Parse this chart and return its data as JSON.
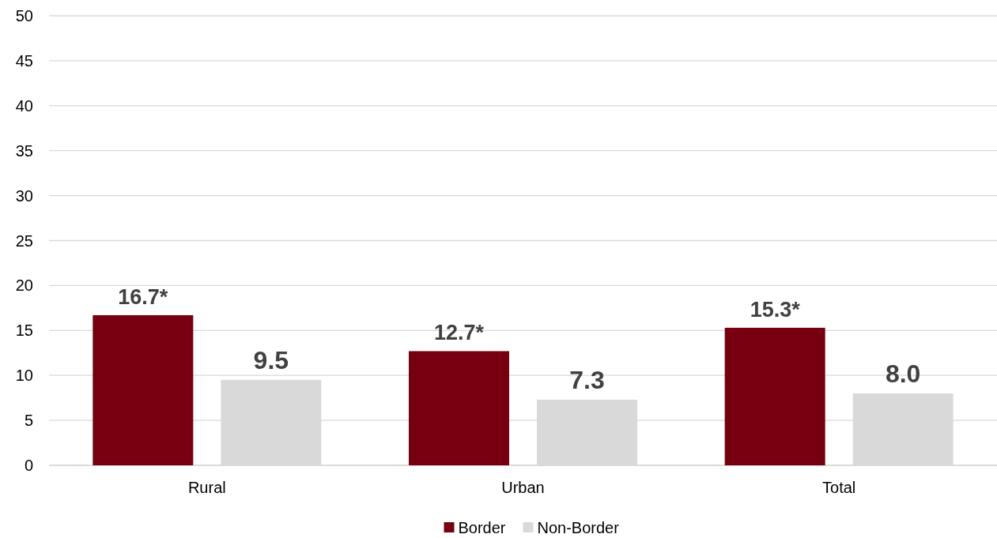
{
  "chart_data": {
    "type": "bar",
    "categories": [
      "Rural",
      "Urban",
      "Total"
    ],
    "series": [
      {
        "name": "Border",
        "color": "#76000f",
        "values": [
          16.7,
          12.7,
          15.3
        ],
        "value_labels": [
          "16.7*",
          "12.7*",
          "15.3*"
        ]
      },
      {
        "name": "Non-Border",
        "color": "#d9d9d9",
        "values": [
          9.5,
          7.3,
          8.0
        ],
        "value_labels": [
          "9.5",
          "7.3",
          "8.0"
        ]
      }
    ],
    "ylim": [
      0,
      50
    ],
    "yticks": [
      0,
      5,
      10,
      15,
      20,
      25,
      30,
      35,
      40,
      45,
      50
    ],
    "grid": "y",
    "legend": "bottom"
  }
}
